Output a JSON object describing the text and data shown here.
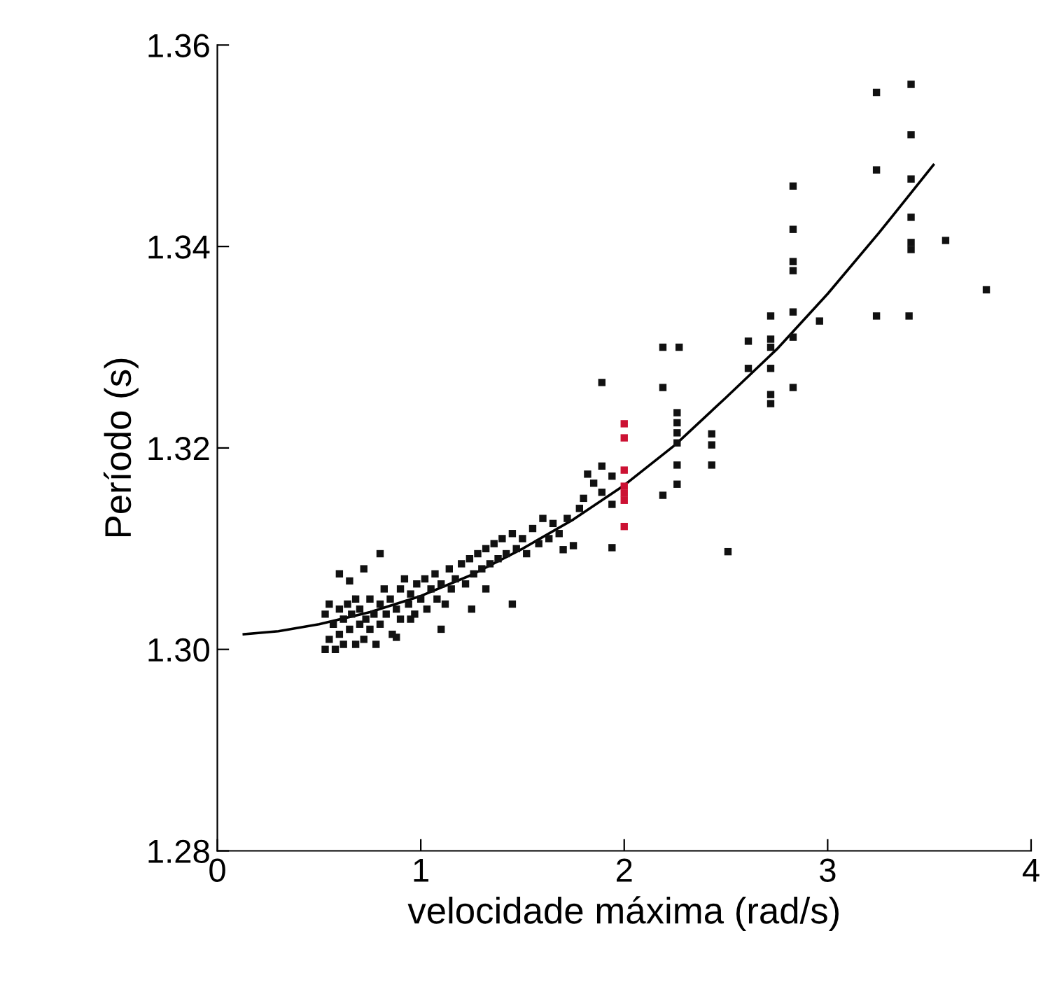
{
  "chart_data": {
    "type": "scatter",
    "xlabel": "velocidade máxima (rad/s)",
    "ylabel": "Período (s)",
    "xlim": [
      0,
      4
    ],
    "ylim": [
      1.28,
      1.36
    ],
    "xticks": [
      0,
      1,
      2,
      3,
      4
    ],
    "yticks": [
      {
        "value": 1.28,
        "label": "1.28"
      },
      {
        "value": 1.3,
        "label": "1.30"
      },
      {
        "value": 1.32,
        "label": "1.32"
      },
      {
        "value": 1.34,
        "label": "1.34"
      },
      {
        "value": 1.36,
        "label": "1.36"
      }
    ],
    "marker": "square",
    "grid": false,
    "series": [
      {
        "color": "#111111",
        "x": [
          0.53,
          0.53,
          0.55,
          0.55,
          0.57,
          0.58,
          0.6,
          0.6,
          0.62,
          0.62,
          0.64,
          0.65,
          0.66,
          0.68,
          0.68,
          0.7,
          0.7,
          0.72,
          0.73,
          0.75,
          0.75,
          0.77,
          0.78,
          0.8,
          0.8,
          0.82,
          0.83,
          0.85,
          0.86,
          0.88,
          0.9,
          0.9,
          0.92,
          0.94,
          0.95,
          0.97,
          0.98,
          1.0,
          1.02,
          1.03,
          1.05,
          1.07,
          1.08,
          1.1,
          1.12,
          1.14,
          1.15,
          1.17,
          1.2,
          1.22,
          1.24,
          1.26,
          1.28,
          1.3,
          1.32,
          1.34,
          1.36,
          1.38,
          1.4,
          1.42,
          1.45,
          1.47,
          1.5,
          1.52,
          1.55,
          1.58,
          1.6,
          1.63,
          1.65,
          1.68,
          1.7,
          1.72,
          1.75,
          1.78,
          1.8,
          1.82,
          1.85,
          1.89,
          1.89,
          1.89,
          1.94,
          1.94,
          1.94,
          0.6,
          0.65,
          0.72,
          0.8,
          0.88,
          0.95,
          1.1,
          1.25,
          1.32,
          1.45
        ],
        "values": [
          1.3,
          1.3035,
          1.301,
          1.3045,
          1.3025,
          1.3,
          1.304,
          1.3015,
          1.303,
          1.3005,
          1.3045,
          1.302,
          1.3035,
          1.3005,
          1.305,
          1.3025,
          1.304,
          1.301,
          1.303,
          1.305,
          1.302,
          1.3035,
          1.3005,
          1.3045,
          1.3025,
          1.306,
          1.3035,
          1.305,
          1.3015,
          1.304,
          1.306,
          1.303,
          1.307,
          1.3045,
          1.3055,
          1.3035,
          1.3065,
          1.305,
          1.307,
          1.304,
          1.306,
          1.3075,
          1.305,
          1.3065,
          1.3045,
          1.308,
          1.306,
          1.307,
          1.3085,
          1.3065,
          1.309,
          1.3075,
          1.3095,
          1.308,
          1.31,
          1.3085,
          1.3105,
          1.309,
          1.311,
          1.3095,
          1.3115,
          1.31,
          1.311,
          1.3095,
          1.312,
          1.3105,
          1.313,
          1.311,
          1.3125,
          1.3115,
          1.3099,
          1.313,
          1.3103,
          1.314,
          1.315,
          1.3174,
          1.3165,
          1.3182,
          1.3156,
          1.3265,
          1.3172,
          1.3144,
          1.3101,
          1.3075,
          1.3068,
          1.308,
          1.3095,
          1.3012,
          1.303,
          1.302,
          1.304,
          1.306,
          1.3045
        ]
      },
      {
        "color": "#cc1133",
        "x": [
          2.0,
          2.0,
          2.0,
          2.0,
          2.0,
          2.0,
          2.0
        ],
        "values": [
          1.3224,
          1.321,
          1.3178,
          1.3162,
          1.3155,
          1.3148,
          1.3122
        ]
      },
      {
        "color": "#111111",
        "x": [
          2.19,
          2.27,
          2.19,
          2.26,
          2.26,
          2.26,
          2.26,
          2.43,
          2.43,
          2.26,
          2.43,
          2.26,
          2.19,
          2.51,
          2.61,
          2.72,
          2.72,
          2.61,
          2.72,
          2.72,
          2.72,
          2.72,
          2.83,
          2.83,
          2.83,
          2.83,
          2.83,
          2.83,
          2.83,
          2.96,
          3.24,
          3.24,
          3.24,
          3.41,
          3.41,
          3.41,
          3.41,
          3.41,
          3.41,
          3.4,
          3.58,
          3.78
        ],
        "values": [
          1.33,
          1.33,
          1.326,
          1.3235,
          1.3225,
          1.3215,
          1.3205,
          1.3214,
          1.3203,
          1.3183,
          1.3183,
          1.3164,
          1.3153,
          1.3097,
          1.3306,
          1.3308,
          1.33,
          1.3279,
          1.3279,
          1.3253,
          1.3244,
          1.3331,
          1.346,
          1.3417,
          1.3385,
          1.3376,
          1.3335,
          1.331,
          1.326,
          1.3326,
          1.3553,
          1.3476,
          1.3331,
          1.3561,
          1.3511,
          1.3467,
          1.3429,
          1.3404,
          1.3397,
          1.3331,
          1.3406,
          1.3357
        ]
      },
      {
        "type": "line",
        "color": "#000000",
        "marker": "none",
        "line_style": "solid",
        "x": [
          0.13,
          0.3,
          0.5,
          0.75,
          1.0,
          1.25,
          1.5,
          1.75,
          2.0,
          2.25,
          2.5,
          2.75,
          3.0,
          3.25,
          3.52
        ],
        "values": [
          1.3015,
          1.3018,
          1.3025,
          1.3037,
          1.3053,
          1.3074,
          1.31,
          1.3129,
          1.3163,
          1.3203,
          1.325,
          1.3298,
          1.3353,
          1.3413,
          1.3481
        ]
      }
    ]
  }
}
